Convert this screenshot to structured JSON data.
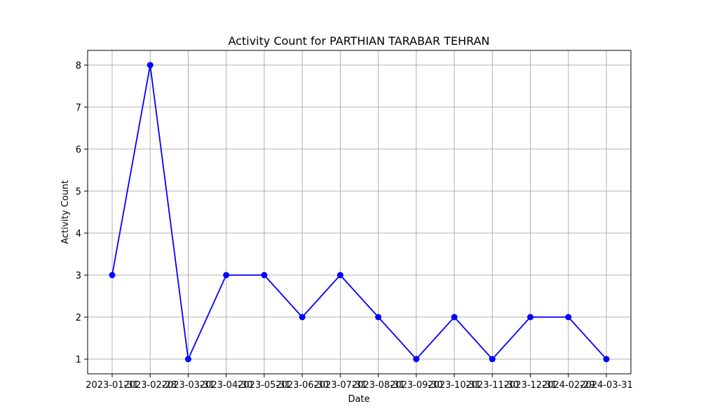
{
  "chart_data": {
    "type": "line",
    "title": "Activity Count for PARTHIAN TARABAR TEHRAN",
    "xlabel": "Date",
    "ylabel": "Activity Count",
    "x": [
      "2023-01-31",
      "2023-02-28",
      "2023-03-31",
      "2023-04-30",
      "2023-05-31",
      "2023-06-30",
      "2023-07-31",
      "2023-08-31",
      "2023-09-30",
      "2023-10-31",
      "2023-11-30",
      "2023-12-31",
      "2024-02-29",
      "2024-03-31"
    ],
    "y": [
      3,
      8,
      1,
      3,
      3,
      2,
      3,
      2,
      1,
      2,
      1,
      2,
      2,
      1
    ],
    "yticks": [
      1,
      2,
      3,
      4,
      5,
      6,
      7,
      8
    ],
    "ylim": [
      0.65,
      8.35
    ],
    "grid": true,
    "line_color": "#0000ff",
    "marker": "circle"
  }
}
